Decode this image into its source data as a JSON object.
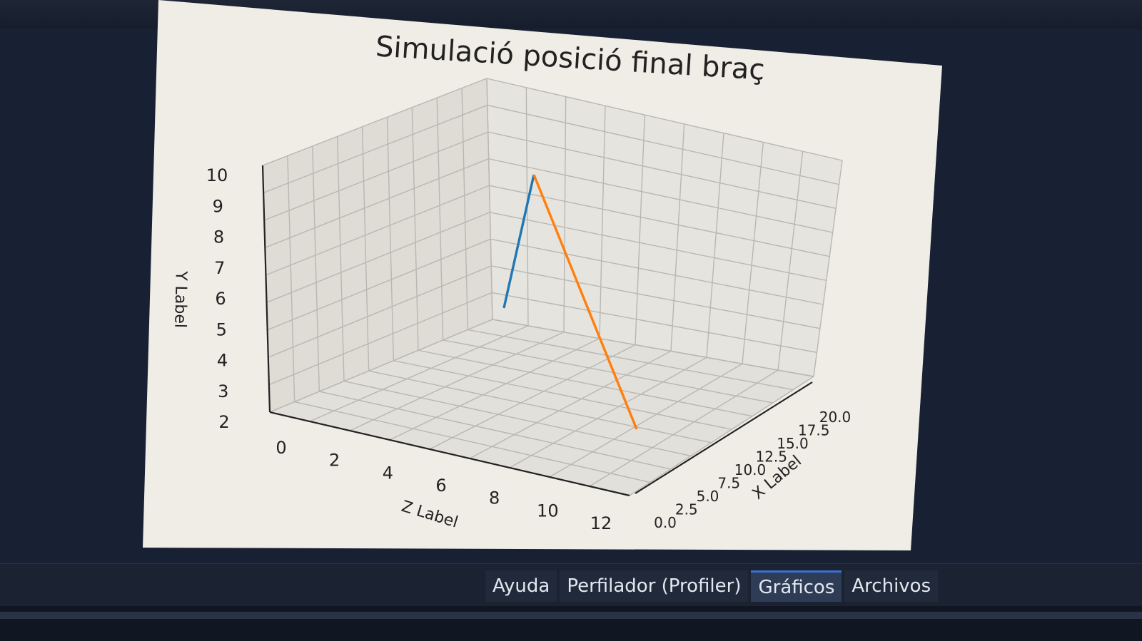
{
  "chart_data": {
    "type": "line3d",
    "title": "Simulació posició final braç",
    "xlabel": "X Label",
    "ylabel": "Y Label",
    "zlabel": "Z Label",
    "x_ticks": [
      "0.0",
      "2.5",
      "5.0",
      "7.5",
      "10.0",
      "12.5",
      "15.0",
      "17.5",
      "20.0"
    ],
    "y_ticks": [
      "2",
      "3",
      "4",
      "5",
      "6",
      "7",
      "8",
      "9",
      "10"
    ],
    "z_ticks": [
      "0",
      "2",
      "4",
      "6",
      "8",
      "10",
      "12"
    ],
    "xlim": [
      0,
      20
    ],
    "ylim": [
      2,
      10
    ],
    "zlim": [
      0,
      12
    ],
    "grid": true,
    "series": [
      {
        "color": "#1f77b4",
        "points": [
          [
            0,
            4,
            0
          ],
          [
            0,
            10,
            0
          ]
        ]
      },
      {
        "color": "#ff7f0e",
        "points": [
          [
            0,
            10,
            0
          ],
          [
            0,
            2,
            10
          ]
        ]
      }
    ]
  },
  "tabs": [
    {
      "label": "Ayuda",
      "active": false
    },
    {
      "label": "Perfilador (Profiler)",
      "active": false
    },
    {
      "label": "Gráficos",
      "active": true
    },
    {
      "label": "Archivos",
      "active": false
    }
  ],
  "colors": {
    "figure_bg": "#efede6",
    "pane_bg": "#182133",
    "active_tab_accent": "#3b6fd6"
  }
}
